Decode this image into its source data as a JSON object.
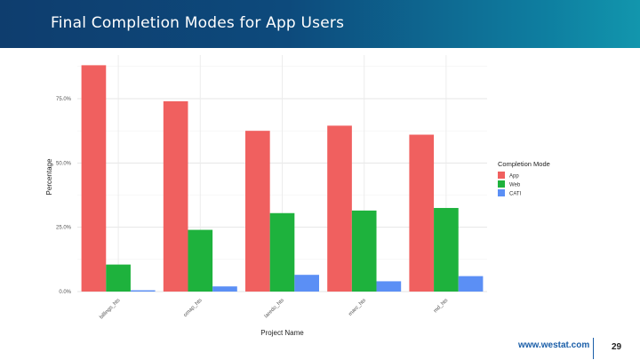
{
  "slide": {
    "title": "Final Completion Modes for App Users",
    "footer_url": "www.westat.com",
    "page_number": "29"
  },
  "chart_data": {
    "type": "bar",
    "title": "",
    "xlabel": "Project Name",
    "ylabel": "Percentage",
    "ylim": [
      0,
      90
    ],
    "yticks": [
      0,
      25,
      50,
      75
    ],
    "ytick_labels": [
      "0.0%",
      "25.0%",
      "50.0%",
      "75.0%"
    ],
    "categories": [
      "billings_hts",
      "omap_hts",
      "laredo_hts",
      "marc_hts",
      "md_hts"
    ],
    "series": [
      {
        "name": "App",
        "color": "#f0605f",
        "values": [
          88,
          74,
          62.5,
          64.5,
          61
        ]
      },
      {
        "name": "Web",
        "color": "#1eb23d",
        "values": [
          10.5,
          24,
          30.5,
          31.5,
          32.5
        ]
      },
      {
        "name": "CATI",
        "color": "#5b8ff5",
        "values": [
          0.5,
          2,
          6.5,
          4,
          6
        ]
      }
    ],
    "legend": {
      "title": "Completion Mode",
      "position": "right"
    },
    "grid": true
  }
}
